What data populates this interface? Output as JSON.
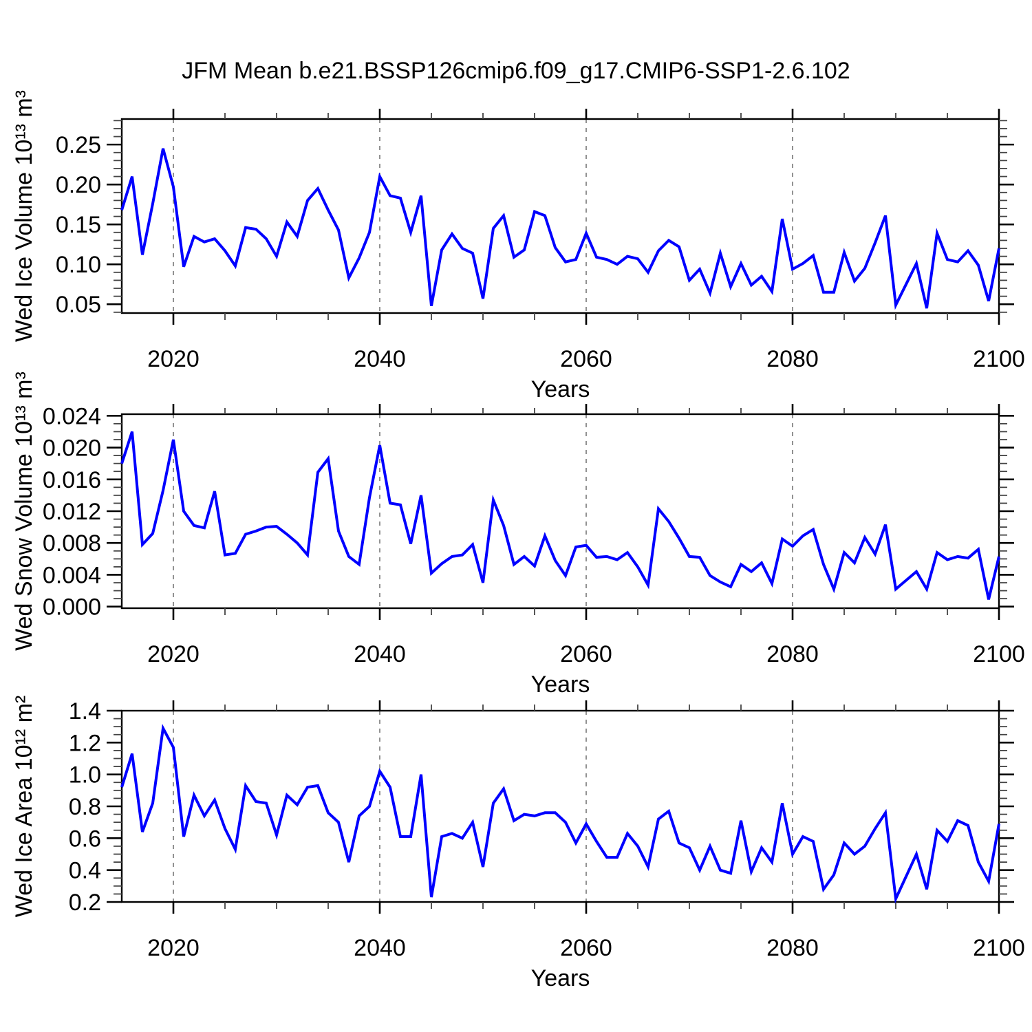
{
  "title": "JFM Mean b.e21.BSSP126cmip6.f09_g17.CMIP6-SSP1-2.6.102",
  "colors": {
    "line": "#0000ff",
    "grid": "#777777",
    "frame": "#000000",
    "minor_tick": "#444444"
  },
  "years": [
    2015,
    2016,
    2017,
    2018,
    2019,
    2020,
    2021,
    2022,
    2023,
    2024,
    2025,
    2026,
    2027,
    2028,
    2029,
    2030,
    2031,
    2032,
    2033,
    2034,
    2035,
    2036,
    2037,
    2038,
    2039,
    2040,
    2041,
    2042,
    2043,
    2044,
    2045,
    2046,
    2047,
    2048,
    2049,
    2050,
    2051,
    2052,
    2053,
    2054,
    2055,
    2056,
    2057,
    2058,
    2059,
    2060,
    2061,
    2062,
    2063,
    2064,
    2065,
    2066,
    2067,
    2068,
    2069,
    2070,
    2071,
    2072,
    2073,
    2074,
    2075,
    2076,
    2077,
    2078,
    2079,
    2080,
    2081,
    2082,
    2083,
    2084,
    2085,
    2086,
    2087,
    2088,
    2089,
    2090,
    2091,
    2092,
    2093,
    2094,
    2095,
    2096,
    2097,
    2098,
    2099,
    2100
  ],
  "chart_data": [
    {
      "type": "line",
      "name": "wed-ice-volume",
      "ylabel": "Wed Ice Volume 10¹³ m³",
      "xlabel": "Years",
      "line_color": "#0000ff",
      "xlim": [
        2015,
        2100
      ],
      "ylim": [
        0.039,
        0.282
      ],
      "xtick_values": [
        2020,
        2040,
        2060,
        2080,
        2100
      ],
      "xtick_labels": [
        "2020",
        "2040",
        "2060",
        "2080",
        "2100"
      ],
      "x_minor_step": 5,
      "grid_x": [
        2020,
        2040,
        2060,
        2080
      ],
      "ytick_values": [
        0.05,
        0.1,
        0.15,
        0.2,
        0.25
      ],
      "ytick_labels": [
        "0.05",
        "0.10",
        "0.15",
        "0.20",
        "0.25"
      ],
      "y_minor_step": 0.01,
      "values": [
        0.168,
        0.21,
        0.112,
        0.176,
        0.245,
        0.197,
        0.097,
        0.135,
        0.128,
        0.132,
        0.117,
        0.098,
        0.146,
        0.144,
        0.132,
        0.11,
        0.153,
        0.135,
        0.18,
        0.195,
        0.168,
        0.143,
        0.083,
        0.108,
        0.14,
        0.21,
        0.186,
        0.183,
        0.14,
        0.186,
        0.048,
        0.118,
        0.138,
        0.12,
        0.114,
        0.057,
        0.145,
        0.161,
        0.109,
        0.118,
        0.166,
        0.161,
        0.121,
        0.103,
        0.106,
        0.139,
        0.109,
        0.106,
        0.1,
        0.11,
        0.107,
        0.09,
        0.117,
        0.13,
        0.122,
        0.08,
        0.094,
        0.064,
        0.114,
        0.072,
        0.101,
        0.074,
        0.085,
        0.066,
        0.157,
        0.094,
        0.101,
        0.111,
        0.065,
        0.065,
        0.115,
        0.079,
        0.095,
        0.127,
        0.161,
        0.049,
        0.075,
        0.101,
        0.045,
        0.139,
        0.106,
        0.103,
        0.117,
        0.099,
        0.054,
        0.12
      ]
    },
    {
      "type": "line",
      "name": "wed-snow-volume",
      "ylabel": "Wed Snow Volume 10¹³ m³",
      "xlabel": "Years",
      "line_color": "#0000ff",
      "xlim": [
        2015,
        2100
      ],
      "ylim": [
        -0.0002,
        0.0242
      ],
      "xtick_values": [
        2020,
        2040,
        2060,
        2080,
        2100
      ],
      "xtick_labels": [
        "2020",
        "2040",
        "2060",
        "2080",
        "2100"
      ],
      "x_minor_step": 5,
      "grid_x": [
        2020,
        2040,
        2060,
        2080
      ],
      "ytick_values": [
        0.0,
        0.004,
        0.008,
        0.012,
        0.016,
        0.02,
        0.024
      ],
      "ytick_labels": [
        "0.000",
        "0.004",
        "0.008",
        "0.012",
        "0.016",
        "0.020",
        "0.024"
      ],
      "y_minor_step": 0.001,
      "values": [
        0.018,
        0.022,
        0.0078,
        0.0092,
        0.0146,
        0.021,
        0.012,
        0.0102,
        0.0099,
        0.0145,
        0.0065,
        0.0067,
        0.0091,
        0.0095,
        0.01,
        0.0101,
        0.0091,
        0.008,
        0.0065,
        0.0169,
        0.0186,
        0.0095,
        0.0063,
        0.0053,
        0.0137,
        0.0203,
        0.013,
        0.0128,
        0.0079,
        0.014,
        0.0042,
        0.0054,
        0.0063,
        0.0065,
        0.0078,
        0.003,
        0.0134,
        0.0102,
        0.0053,
        0.0063,
        0.0051,
        0.0089,
        0.0058,
        0.0039,
        0.0075,
        0.0077,
        0.0062,
        0.0063,
        0.0059,
        0.0068,
        0.005,
        0.0027,
        0.0123,
        0.0107,
        0.0086,
        0.0063,
        0.0062,
        0.0039,
        0.0031,
        0.0025,
        0.0053,
        0.0044,
        0.0055,
        0.0029,
        0.0085,
        0.0076,
        0.0089,
        0.0097,
        0.0053,
        0.0022,
        0.0068,
        0.0055,
        0.0087,
        0.0066,
        0.0103,
        0.0022,
        0.0033,
        0.0044,
        0.0022,
        0.0068,
        0.0059,
        0.0063,
        0.0061,
        0.0072,
        0.0009,
        0.0063
      ]
    },
    {
      "type": "line",
      "name": "wed-ice-area",
      "ylabel": "Wed Ice Area 10¹² m²",
      "xlabel": "Years",
      "line_color": "#0000ff",
      "xlim": [
        2015,
        2100
      ],
      "ylim": [
        0.2,
        1.4
      ],
      "xtick_values": [
        2020,
        2040,
        2060,
        2080,
        2100
      ],
      "xtick_labels": [
        "2020",
        "2040",
        "2060",
        "2080",
        "2100"
      ],
      "x_minor_step": 5,
      "grid_x": [
        2020,
        2040,
        2060,
        2080
      ],
      "ytick_values": [
        0.2,
        0.4,
        0.6,
        0.8,
        1.0,
        1.2,
        1.4
      ],
      "ytick_labels": [
        "0.2",
        "0.4",
        "0.6",
        "0.8",
        "1.0",
        "1.2",
        "1.4"
      ],
      "y_minor_step": 0.05,
      "values": [
        0.92,
        1.13,
        0.64,
        0.82,
        1.29,
        1.17,
        0.61,
        0.87,
        0.74,
        0.84,
        0.66,
        0.53,
        0.93,
        0.83,
        0.82,
        0.62,
        0.87,
        0.81,
        0.92,
        0.93,
        0.76,
        0.7,
        0.45,
        0.74,
        0.8,
        1.02,
        0.92,
        0.61,
        0.61,
        1.0,
        0.23,
        0.61,
        0.63,
        0.6,
        0.7,
        0.42,
        0.82,
        0.91,
        0.71,
        0.75,
        0.74,
        0.76,
        0.76,
        0.7,
        0.57,
        0.69,
        0.58,
        0.48,
        0.48,
        0.63,
        0.55,
        0.42,
        0.72,
        0.77,
        0.57,
        0.54,
        0.4,
        0.55,
        0.4,
        0.38,
        0.71,
        0.39,
        0.54,
        0.45,
        0.82,
        0.5,
        0.61,
        0.58,
        0.28,
        0.37,
        0.57,
        0.5,
        0.55,
        0.66,
        0.76,
        0.22,
        0.36,
        0.5,
        0.28,
        0.65,
        0.58,
        0.71,
        0.68,
        0.45,
        0.33,
        0.69
      ]
    }
  ]
}
